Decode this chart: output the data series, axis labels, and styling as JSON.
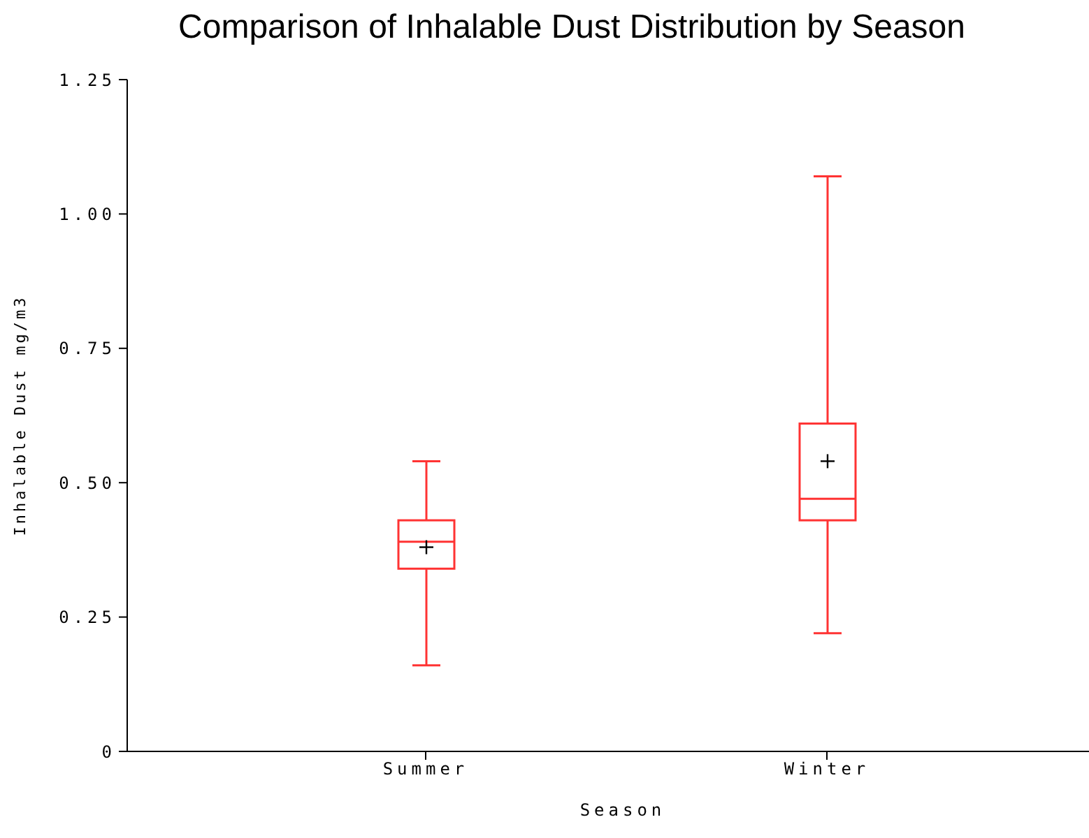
{
  "chart_data": {
    "type": "box",
    "title": "Comparison of Inhalable Dust Distribution by Season",
    "xlabel": "Season",
    "ylabel": "Inhalable Dust mg/m3",
    "categories": [
      "Summer",
      "Winter"
    ],
    "series": [
      {
        "color": "#ff3333",
        "boxes": [
          {
            "low": 0.16,
            "q1": 0.34,
            "median": 0.39,
            "q3": 0.43,
            "high": 0.54,
            "mean": 0.38
          },
          {
            "low": 0.22,
            "q1": 0.43,
            "median": 0.47,
            "q3": 0.61,
            "high": 1.07,
            "mean": 0.54
          }
        ]
      }
    ],
    "ylim": [
      0,
      1.25
    ],
    "yticks": [
      0,
      0.25,
      {
        "value": 0.5,
        "label": "0.50"
      },
      0.75,
      {
        "value": 1,
        "label": "1.00"
      },
      1.25
    ],
    "grid": false
  }
}
